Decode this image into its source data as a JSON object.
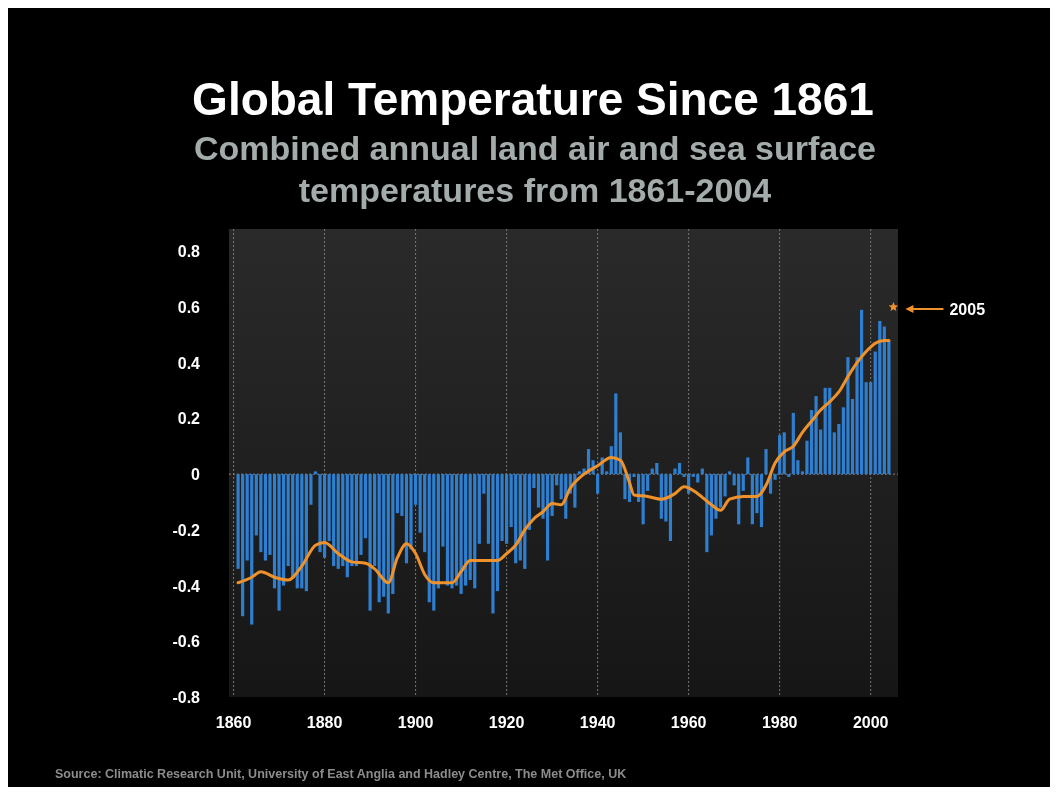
{
  "chart_data": {
    "type": "bar",
    "title": "Global Temperature Since 1861",
    "subtitle": "Combined annual land air and sea surface temperatures from 1861-2004",
    "x": [
      1861,
      1862,
      1863,
      1864,
      1865,
      1866,
      1867,
      1868,
      1869,
      1870,
      1871,
      1872,
      1873,
      1874,
      1875,
      1876,
      1877,
      1878,
      1879,
      1880,
      1881,
      1882,
      1883,
      1884,
      1885,
      1886,
      1887,
      1888,
      1889,
      1890,
      1891,
      1892,
      1893,
      1894,
      1895,
      1896,
      1897,
      1898,
      1899,
      1900,
      1901,
      1902,
      1903,
      1904,
      1905,
      1906,
      1907,
      1908,
      1909,
      1910,
      1911,
      1912,
      1913,
      1914,
      1915,
      1916,
      1917,
      1918,
      1919,
      1920,
      1921,
      1922,
      1923,
      1924,
      1925,
      1926,
      1927,
      1928,
      1929,
      1930,
      1931,
      1932,
      1933,
      1934,
      1935,
      1936,
      1937,
      1938,
      1939,
      1940,
      1941,
      1942,
      1943,
      1944,
      1945,
      1946,
      1947,
      1948,
      1949,
      1950,
      1951,
      1952,
      1953,
      1954,
      1955,
      1956,
      1957,
      1958,
      1959,
      1960,
      1961,
      1962,
      1963,
      1964,
      1965,
      1966,
      1967,
      1968,
      1969,
      1970,
      1971,
      1972,
      1973,
      1974,
      1975,
      1976,
      1977,
      1978,
      1979,
      1980,
      1981,
      1982,
      1983,
      1984,
      1985,
      1986,
      1987,
      1988,
      1989,
      1990,
      1991,
      1992,
      1993,
      1994,
      1995,
      1996,
      1997,
      1998,
      1999,
      2000,
      2001,
      2002,
      2003,
      2004
    ],
    "series": [
      {
        "color": "#2f7fd0",
        "values": [
          -0.34,
          -0.51,
          -0.31,
          -0.54,
          -0.22,
          -0.28,
          -0.31,
          -0.29,
          -0.41,
          -0.49,
          -0.4,
          -0.33,
          -0.37,
          -0.41,
          -0.41,
          -0.42,
          -0.11,
          0.01,
          -0.28,
          -0.3,
          -0.24,
          -0.33,
          -0.34,
          -0.33,
          -0.37,
          -0.33,
          -0.33,
          -0.29,
          -0.23,
          -0.49,
          -0.33,
          -0.46,
          -0.44,
          -0.5,
          -0.43,
          -0.14,
          -0.15,
          -0.32,
          -0.27,
          -0.11,
          -0.21,
          -0.28,
          -0.46,
          -0.49,
          -0.41,
          -0.26,
          -0.4,
          -0.41,
          -0.4,
          -0.43,
          -0.4,
          -0.38,
          -0.41,
          -0.25,
          -0.07,
          -0.25,
          -0.5,
          -0.42,
          -0.24,
          -0.25,
          -0.19,
          -0.32,
          -0.31,
          -0.34,
          -0.2,
          -0.05,
          -0.12,
          -0.16,
          -0.31,
          -0.15,
          -0.04,
          -0.09,
          -0.16,
          -0.07,
          -0.12,
          0.01,
          0.02,
          0.09,
          0.05,
          -0.07,
          0.06,
          0.01,
          0.1,
          0.29,
          0.15,
          -0.09,
          -0.1,
          -0.01,
          -0.1,
          -0.18,
          -0.06,
          0.02,
          0.04,
          -0.16,
          -0.17,
          -0.24,
          0.02,
          0.04,
          -0.01,
          -0.07,
          -0.01,
          -0.03,
          0.02,
          -0.28,
          -0.22,
          -0.16,
          -0.12,
          -0.08,
          0.01,
          -0.04,
          -0.18,
          -0.06,
          0.06,
          -0.18,
          -0.14,
          -0.19,
          0.09,
          -0.07,
          -0.02,
          0.14,
          0.15,
          -0.01,
          0.22,
          0.05,
          0.01,
          0.12,
          0.23,
          0.28,
          0.16,
          0.31,
          0.31,
          0.15,
          0.18,
          0.24,
          0.42,
          0.27,
          0.42,
          0.59,
          0.33,
          0.33,
          0.44,
          0.55,
          0.53,
          0.48
        ]
      },
      {
        "type": "line",
        "color": "#f0922b",
        "x": [
          1861,
          1864,
          1866,
          1869,
          1872,
          1875,
          1878,
          1880,
          1883,
          1886,
          1889,
          1891,
          1894,
          1896,
          1898,
          1900,
          1902,
          1904,
          1908,
          1910,
          1912,
          1915,
          1918,
          1920,
          1922,
          1924,
          1926,
          1928,
          1930,
          1932,
          1934,
          1937,
          1940,
          1943,
          1945,
          1947,
          1948,
          1951,
          1954,
          1957,
          1959,
          1962,
          1965,
          1967,
          1969,
          1972,
          1975,
          1977,
          1979,
          1981,
          1983,
          1985,
          1987,
          1989,
          1991,
          1993,
          1995,
          1997,
          1999,
          2001,
          2003,
          2004
        ],
        "values": [
          -0.39,
          -0.37,
          -0.35,
          -0.37,
          -0.38,
          -0.33,
          -0.255,
          -0.245,
          -0.285,
          -0.315,
          -0.32,
          -0.34,
          -0.39,
          -0.3,
          -0.25,
          -0.285,
          -0.36,
          -0.39,
          -0.39,
          -0.35,
          -0.31,
          -0.31,
          -0.31,
          -0.285,
          -0.255,
          -0.2,
          -0.16,
          -0.135,
          -0.105,
          -0.11,
          -0.05,
          0,
          0.03,
          0.06,
          0.05,
          -0.03,
          -0.075,
          -0.08,
          -0.09,
          -0.07,
          -0.045,
          -0.07,
          -0.11,
          -0.13,
          -0.09,
          -0.08,
          -0.08,
          -0.04,
          0.04,
          0.08,
          0.1,
          0.15,
          0.19,
          0.23,
          0.26,
          0.295,
          0.35,
          0.4,
          0.44,
          0.47,
          0.48,
          0.48
        ]
      },
      {
        "type": "scatter",
        "name": "2005",
        "color": "#f0922b",
        "marker": "star",
        "x": [
          2005
        ],
        "values": [
          0.6
        ]
      }
    ],
    "xlim": [
      1859,
      2006
    ],
    "xticks": [
      1860,
      1880,
      1900,
      1920,
      1940,
      1960,
      1980,
      2000
    ],
    "ylim": [
      -0.8,
      0.88
    ],
    "yticks": [
      -0.8,
      -0.6,
      -0.4,
      -0.2,
      0,
      0.2,
      0.4,
      0.6,
      0.8
    ],
    "grid": "x",
    "ref_lines": [
      {
        "axis": "y",
        "value": 0,
        "color": "#888888",
        "line_style": "dotted"
      }
    ],
    "annotations": [
      "Source: Climatic Research Unit, University of East Anglia and Hadley Centre, The Met Office, UK"
    ]
  }
}
